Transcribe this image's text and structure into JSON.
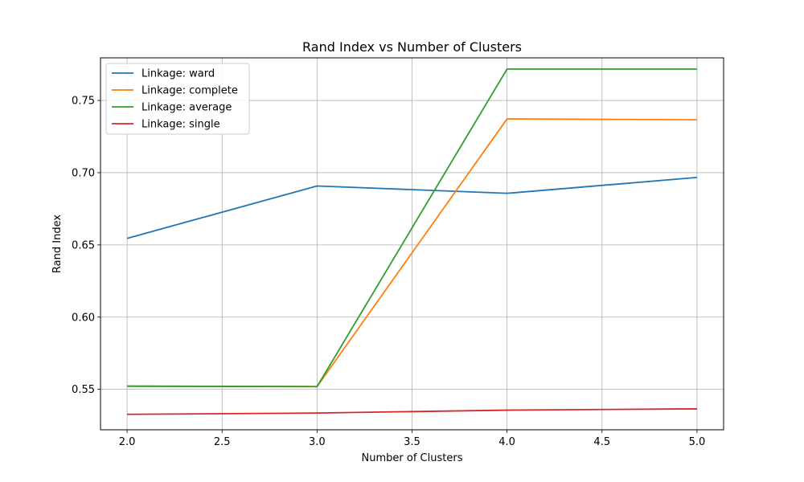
{
  "chart_data": {
    "type": "line",
    "title": "Rand Index vs Number of Clusters",
    "xlabel": "Number of Clusters",
    "ylabel": "Rand Index",
    "xlim": [
      1.86,
      5.14
    ],
    "ylim": [
      0.522,
      0.7795
    ],
    "x_ticks": [
      2.0,
      2.5,
      3.0,
      3.5,
      4.0,
      4.5,
      5.0
    ],
    "x_tick_labels": [
      "2.0",
      "2.5",
      "3.0",
      "3.5",
      "4.0",
      "4.5",
      "5.0"
    ],
    "y_ticks": [
      0.55,
      0.6,
      0.65,
      0.7,
      0.75
    ],
    "y_tick_labels": [
      "0.55",
      "0.60",
      "0.65",
      "0.70",
      "0.75"
    ],
    "grid": true,
    "legend_position": "top-left",
    "x": [
      2,
      3,
      4,
      5
    ],
    "series": [
      {
        "name": "Linkage: ward",
        "color": "#1f77b4",
        "values": [
          0.6545,
          0.6908,
          0.6857,
          0.6967
        ]
      },
      {
        "name": "Linkage: complete",
        "color": "#ff7f0e",
        "values": [
          0.5522,
          0.5519,
          0.7372,
          0.7366
        ]
      },
      {
        "name": "Linkage: average",
        "color": "#2ca02c",
        "values": [
          0.5522,
          0.5519,
          0.7717,
          0.7717
        ]
      },
      {
        "name": "Linkage: single",
        "color": "#d62728",
        "values": [
          0.5327,
          0.5336,
          0.5356,
          0.5365
        ]
      }
    ]
  }
}
